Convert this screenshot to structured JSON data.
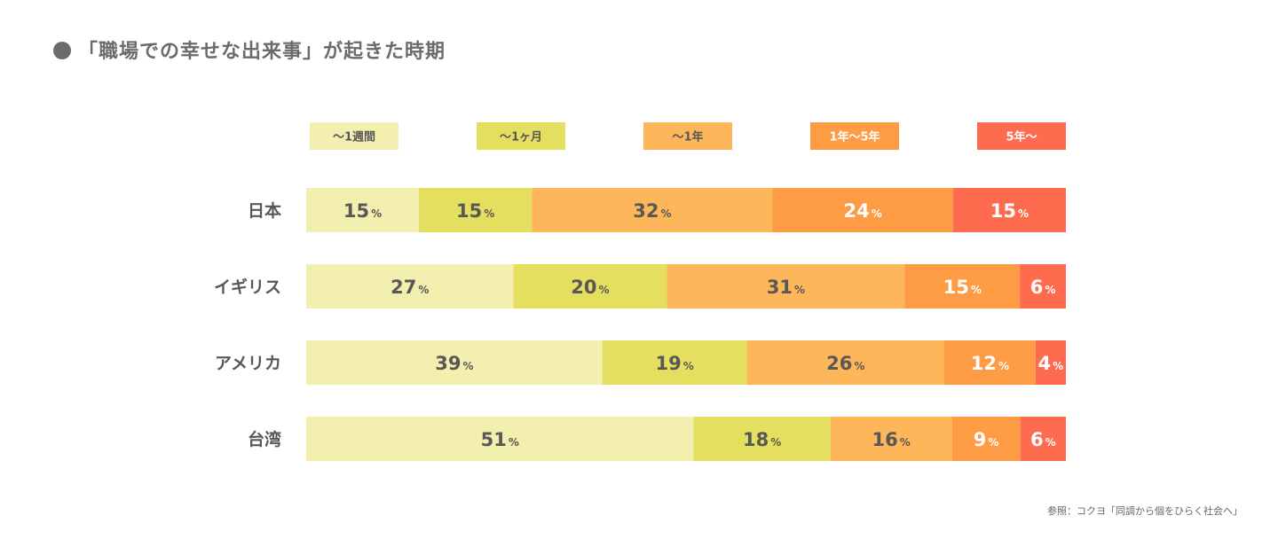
{
  "title": "「職場での幸せな出来事」が起きた時期",
  "source": "参照：コクヨ「同調から個をひらく社会へ」",
  "chart_data": {
    "type": "bar",
    "stacked": true,
    "orientation": "horizontal",
    "percent_sign": "%",
    "categories": [
      "日本",
      "イギリス",
      "アメリカ",
      "台湾"
    ],
    "series": [
      {
        "name": "〜1週間",
        "values": [
          15,
          27,
          39,
          51
        ],
        "color": "#F2EFAF",
        "label_color": "#595757"
      },
      {
        "name": "〜1ヶ月",
        "values": [
          15,
          20,
          19,
          18
        ],
        "color": "#E4DF5E",
        "label_color": "#595757"
      },
      {
        "name": "〜1年",
        "values": [
          32,
          31,
          26,
          16
        ],
        "color": "#FDB65A",
        "label_color": "#595757"
      },
      {
        "name": "1年〜5年",
        "values": [
          24,
          15,
          12,
          9
        ],
        "color": "#FE9B45",
        "label_color": "#ffffff"
      },
      {
        "name": "5年〜",
        "values": [
          15,
          6,
          4,
          6
        ],
        "color": "#FE6B4E",
        "label_color": "#ffffff"
      }
    ],
    "legend_position": "top"
  }
}
